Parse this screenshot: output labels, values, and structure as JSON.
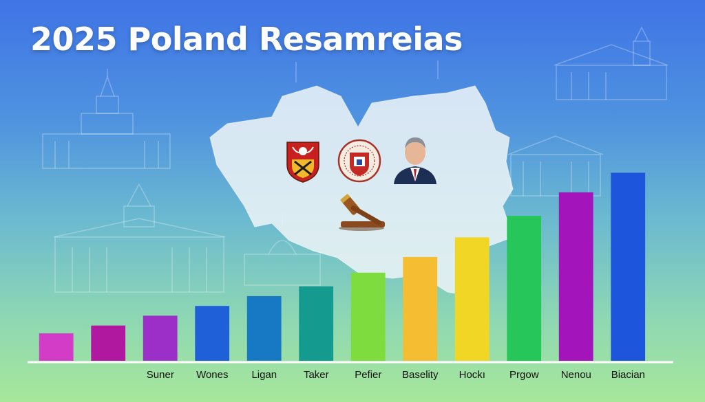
{
  "title": "2025 Poland Resamreias",
  "icons": [
    "coat-of-arms-icon",
    "round-seal-icon",
    "politician-portrait-icon",
    "gavel-icon"
  ],
  "colors": {
    "background_top": "#3f74e6",
    "background_bottom": "#a7e79a",
    "map_fill": "#eaf2f6",
    "axis": "#ffffff"
  },
  "chart_data": {
    "type": "bar",
    "title": "2025 Poland Resamreias",
    "xlabel": "",
    "ylabel": "",
    "grid": false,
    "legend": "none",
    "ylim": [
      0,
      100
    ],
    "categories": [
      "",
      "",
      "Suner",
      "Wones",
      "Ligan",
      "Taker",
      "Pefier",
      "Baselity",
      "Hockı",
      "Prgow",
      "Nenou",
      "Biacian"
    ],
    "values": [
      14,
      18,
      23,
      28,
      33,
      38,
      45,
      53,
      63,
      74,
      86,
      96
    ],
    "colors": [
      "#d23cc6",
      "#b0189f",
      "#9b2fc7",
      "#1f5fd8",
      "#1779c4",
      "#149a8f",
      "#7fdc3f",
      "#f5bd32",
      "#f2d625",
      "#27c65b",
      "#a314bb",
      "#1d55dc"
    ]
  }
}
